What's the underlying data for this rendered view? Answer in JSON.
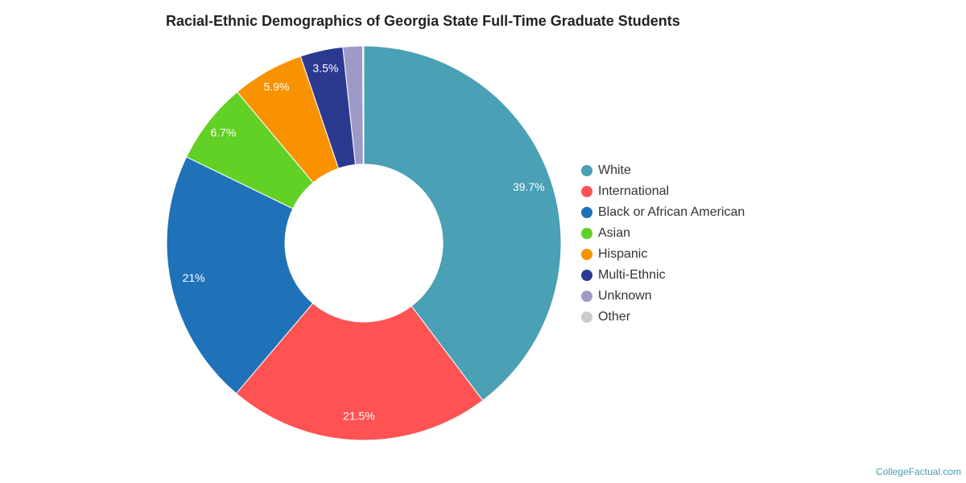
{
  "chart_data": {
    "type": "donut",
    "title": "Racial-Ethnic Demographics of Georgia State Full-Time Graduate Students",
    "categories": [
      "White",
      "International",
      "Black or African American",
      "Asian",
      "Hispanic",
      "Multi-Ethnic",
      "Unknown",
      "Other"
    ],
    "values": [
      39.7,
      21.5,
      21,
      6.7,
      5.9,
      3.5,
      1.6,
      0.1
    ],
    "value_labels": [
      "39.7%",
      "21.5%",
      "21%",
      "6.7%",
      "5.9%",
      "3.5%",
      null,
      null
    ],
    "colors": [
      "#4aa0b5",
      "#ff5252",
      "#1f72b8",
      "#62d125",
      "#f99200",
      "#2b3990",
      "#9e9ac8",
      "#cccccc"
    ],
    "legend": "right",
    "source": "CollegeFactual.com"
  }
}
